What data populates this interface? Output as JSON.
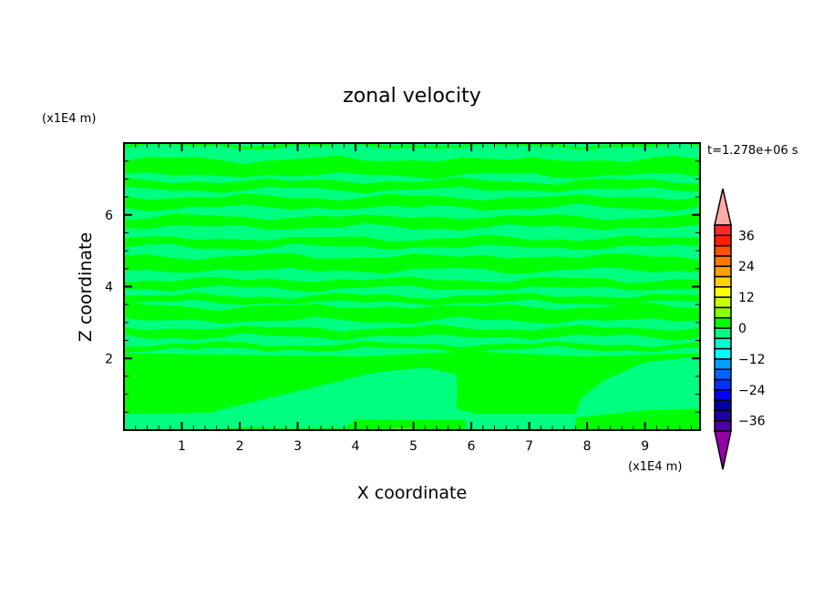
{
  "chart_data": {
    "type": "heatmap",
    "subtype": "filled-contour",
    "title": "zonal velocity",
    "xlabel": "X coordinate",
    "ylabel": "Z coordinate",
    "x_unit_label": "(x1E4 m)",
    "y_unit_label": "(x1E4 m)",
    "time_label": "t=1.278e+06 s",
    "xlim": [
      0,
      9.95
    ],
    "ylim": [
      0,
      8
    ],
    "x_ticks": [
      1,
      2,
      3,
      4,
      5,
      6,
      7,
      8,
      9
    ],
    "x_tick_labels": [
      "1",
      "2",
      "3",
      "4",
      "5",
      "6",
      "7",
      "8",
      "9"
    ],
    "y_ticks": [
      2,
      4,
      6
    ],
    "y_tick_labels": [
      "2",
      "4",
      "6"
    ],
    "x_minor_step": 0.2,
    "y_minor_step": 0.5,
    "grid": false,
    "colorbar": {
      "levels": [
        -40,
        -36,
        -32,
        -28,
        -24,
        -20,
        -16,
        -12,
        -8,
        -4,
        0,
        4,
        8,
        12,
        16,
        20,
        24,
        28,
        32,
        36,
        40
      ],
      "colors_bottom_to_top": [
        "#5000a0",
        "#1e00a0",
        "#0000a0",
        "#0000ff",
        "#0032ff",
        "#0064ff",
        "#00a0ff",
        "#00ffff",
        "#00ffc8",
        "#00ff80",
        "#00ff00",
        "#8cff00",
        "#c8ff00",
        "#ffff00",
        "#ffd200",
        "#ffa000",
        "#ff7800",
        "#ff5000",
        "#ff2000",
        "#ff2828"
      ],
      "under_color": "#9600aa",
      "over_color": "#ffaaaa",
      "tick_values": [
        -36,
        -24,
        -12,
        0,
        12,
        24,
        36
      ],
      "tick_labels": [
        "−36",
        "−24",
        "−12",
        "0",
        "12",
        "24",
        "36"
      ],
      "placement": "right"
    },
    "background_level_color": "#00ff80",
    "stripes_level_color": "#00ff00",
    "stripes_z": [
      [
        7.55,
        7.1
      ],
      [
        6.95,
        6.7
      ],
      [
        6.5,
        6.2
      ],
      [
        5.95,
        5.65
      ],
      [
        5.35,
        5.1
      ],
      [
        4.85,
        4.45
      ],
      [
        4.2,
        3.95
      ],
      [
        3.75,
        3.55
      ],
      [
        3.45,
        3.05
      ],
      [
        2.85,
        2.6
      ],
      [
        2.4,
        2.25
      ],
      [
        7.98,
        7.9
      ]
    ],
    "regions": [
      {
        "color": "#00ff00",
        "points": [
          [
            0,
            0
          ],
          [
            0,
            2.15
          ],
          [
            2,
            2.1
          ],
          [
            4,
            2.05
          ],
          [
            6,
            2.2
          ],
          [
            8,
            2.05
          ],
          [
            9.95,
            2.15
          ],
          [
            9.95,
            0
          ]
        ]
      },
      {
        "color": "#00ff80",
        "points": [
          [
            0,
            0
          ],
          [
            0,
            0.45
          ],
          [
            1.5,
            0.5
          ],
          [
            2.5,
            0.9
          ],
          [
            3.3,
            1.2
          ],
          [
            4.3,
            1.6
          ],
          [
            5.2,
            1.75
          ],
          [
            5.75,
            1.55
          ],
          [
            5.75,
            0.6
          ],
          [
            6.1,
            0.45
          ],
          [
            7.8,
            0.45
          ],
          [
            7.9,
            0.9
          ],
          [
            8.3,
            1.4
          ],
          [
            9,
            1.9
          ],
          [
            9.95,
            2.05
          ],
          [
            9.95,
            0.6
          ],
          [
            9,
            0.55
          ],
          [
            7.8,
            0.35
          ],
          [
            7.8,
            0
          ],
          [
            5.9,
            0
          ],
          [
            5.9,
            0.28
          ],
          [
            4,
            0.3
          ],
          [
            3.8,
            0.05
          ],
          [
            2.6,
            0.05
          ],
          [
            2.3,
            0.1
          ],
          [
            1.8,
            0.05
          ],
          [
            1.5,
            0
          ]
        ]
      },
      {
        "color": "#8cff00",
        "points": [
          [
            4.5,
            0
          ],
          [
            4.7,
            0.05
          ],
          [
            5.0,
            0.05
          ],
          [
            5.1,
            0
          ]
        ]
      }
    ]
  }
}
